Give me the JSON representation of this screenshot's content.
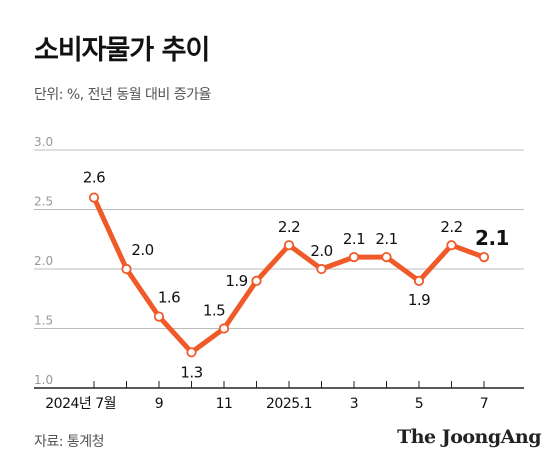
{
  "title": "소비자물가 추이",
  "subtitle": "단위: %, 전년 동월 대비 증가율",
  "source": "자료: 통계청",
  "brand": "The JoongAng",
  "colors": {
    "line": "#f05a28",
    "grid": "#bdbdbd",
    "axis": "#222222"
  },
  "chart_data": {
    "type": "line",
    "title": "소비자물가 추이",
    "ylabel": "",
    "xlabel": "",
    "ylim": [
      1.0,
      3.0
    ],
    "y_ticks": [
      "3.0",
      "2.5",
      "2.0",
      "1.5",
      "1.0"
    ],
    "grid": true,
    "x_tick_labels": [
      "2024년 7월",
      "9",
      "11",
      "2025.1",
      "3",
      "5",
      "7"
    ],
    "series": [
      {
        "x": [
          "2024-07",
          "2024-08",
          "2024-09",
          "2024-10",
          "2024-11",
          "2024-12",
          "2025-01",
          "2025-02",
          "2025-03",
          "2025-04",
          "2025-05",
          "2025-06",
          "2025-07"
        ],
        "values": [
          2.6,
          2.0,
          1.6,
          1.3,
          1.5,
          1.9,
          2.2,
          2.0,
          2.1,
          2.1,
          1.9,
          2.2,
          2.1
        ],
        "data_labels": [
          "2.6",
          "2.0",
          "1.6",
          "1.3",
          "1.5",
          "1.9",
          "2.2",
          "2.0",
          "2.1",
          "2.1",
          "1.9",
          "2.2",
          "2.1"
        ]
      }
    ]
  }
}
